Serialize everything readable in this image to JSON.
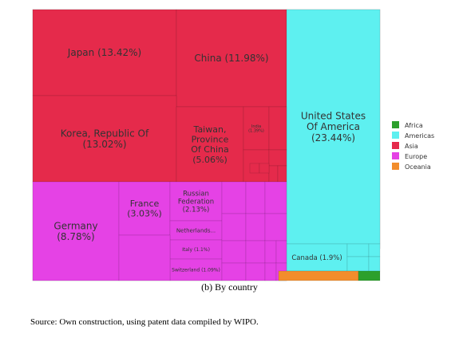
{
  "chart_data": {
    "type": "treemap",
    "legend": {
      "position": "right",
      "entries": [
        {
          "name": "Africa",
          "color": "#2ca02c"
        },
        {
          "name": "Americas",
          "color": "#5ef0f0"
        },
        {
          "name": "Asia",
          "color": "#e52a4b"
        },
        {
          "name": "Europe",
          "color": "#e542e5"
        },
        {
          "name": "Oceania",
          "color": "#f28d2c"
        }
      ]
    },
    "tiles": [
      {
        "label": "Japan (13.42%)",
        "value": 13.42,
        "region": "Asia"
      },
      {
        "label": "China (11.98%)",
        "value": 11.98,
        "region": "Asia"
      },
      {
        "label": "Korea, Republic Of\n(13.02%)",
        "value": 13.02,
        "region": "Asia"
      },
      {
        "label": "Taiwan,\nProvince\nOf China\n(5.06%)",
        "value": 5.06,
        "region": "Asia"
      },
      {
        "label": "India\n(1.39%)",
        "value": 1.39,
        "region": "Asia"
      },
      {
        "label": "United States\nOf America\n(23.44%)",
        "value": 23.44,
        "region": "Americas"
      },
      {
        "label": "Germany\n(8.78%)",
        "value": 8.78,
        "region": "Europe"
      },
      {
        "label": "France\n(3.03%)",
        "value": 3.03,
        "region": "Europe"
      },
      {
        "label": "Russian\nFederation\n(2.13%)",
        "value": 2.13,
        "region": "Europe"
      },
      {
        "label": "Netherlands...",
        "value": null,
        "region": "Europe"
      },
      {
        "label": "Italy (1.1%)",
        "value": 1.1,
        "region": "Europe"
      },
      {
        "label": "Switzerland (1.09%)",
        "value": 1.09,
        "region": "Europe"
      },
      {
        "label": "Canada (1.9%)",
        "value": 1.9,
        "region": "Americas"
      }
    ]
  },
  "caption": "(b) By country",
  "source": "Source: Own construction, using patent data compiled by WIPO."
}
